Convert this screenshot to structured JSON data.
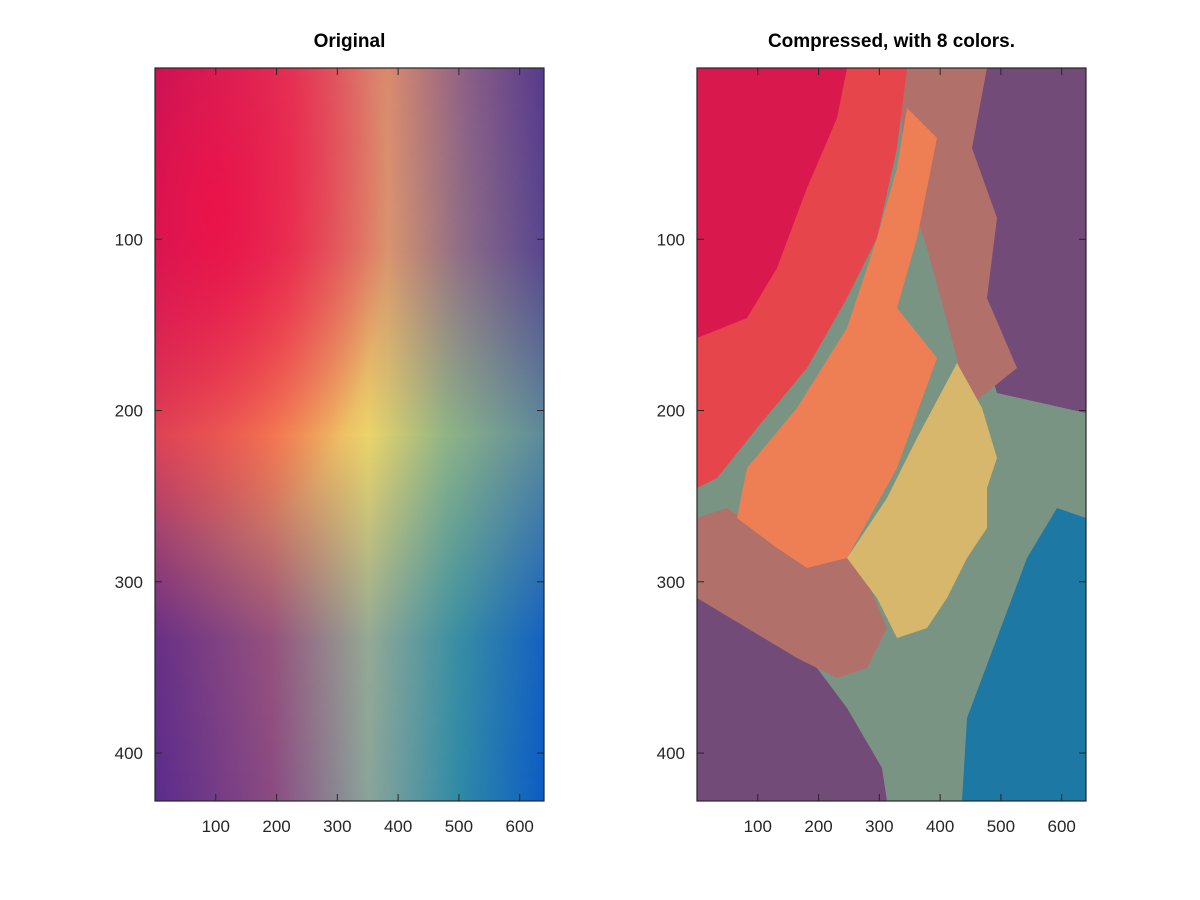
{
  "figure": {
    "charts": [
      {
        "title": "Original"
      },
      {
        "title": "Compressed, with 8 colors."
      }
    ]
  },
  "chart_data": [
    {
      "type": "heatmap",
      "title": "Original",
      "xlabel": "",
      "ylabel": "",
      "xlim": [
        0,
        640
      ],
      "ylim": [
        428,
        0
      ],
      "y_reversed": true,
      "x_ticks": [
        100,
        200,
        300,
        400,
        500,
        600
      ],
      "y_ticks": [
        100,
        200,
        300,
        400
      ],
      "grid": false,
      "legend": "none",
      "corner_colors": {
        "top_left": "#b5145f",
        "top_center": "#d88a6f",
        "top_right": "#563b8c",
        "upper_left_bright": "#f00d46",
        "center": "#ebd068",
        "bottom_left": "#5b2c8c",
        "bottom_center": "#8aa49a",
        "bottom_right": "#0c5cc4"
      }
    },
    {
      "type": "heatmap",
      "title": "Compressed, with 8 colors.",
      "xlabel": "",
      "ylabel": "",
      "xlim": [
        0,
        640
      ],
      "ylim": [
        428,
        0
      ],
      "y_reversed": true,
      "x_ticks": [
        100,
        200,
        300,
        400,
        500,
        600
      ],
      "y_ticks": [
        100,
        200,
        300,
        400
      ],
      "grid": false,
      "legend": "none",
      "n_colors": 8,
      "palette": [
        "#d9184e",
        "#e5454b",
        "#ee7f54",
        "#b1706a",
        "#d6b76b",
        "#7a9483",
        "#734b79",
        "#1d79a3"
      ]
    }
  ]
}
